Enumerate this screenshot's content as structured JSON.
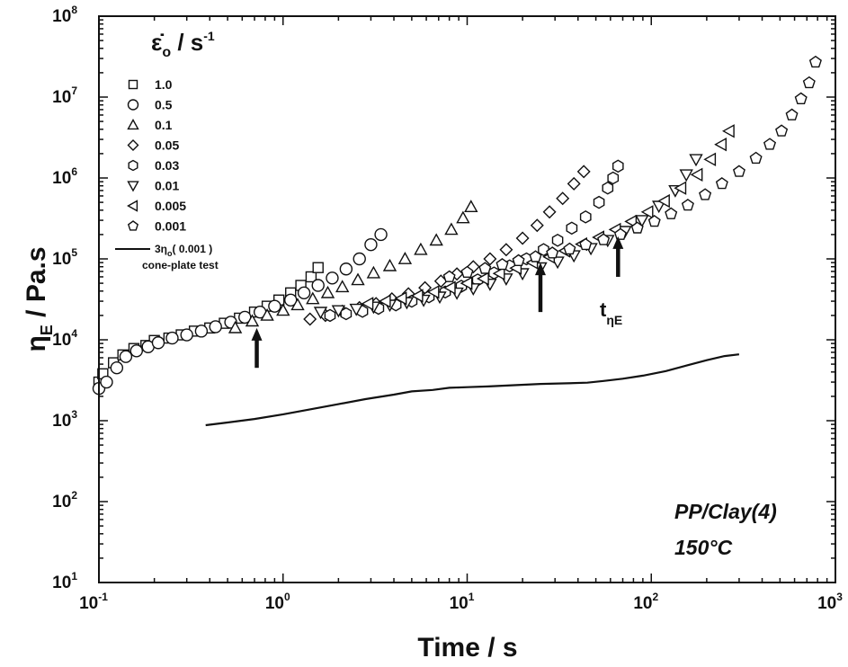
{
  "chart_data": {
    "type": "scatter",
    "x_scale": "log",
    "y_scale": "log",
    "xlim": [
      0.1,
      1000
    ],
    "ylim": [
      10,
      100000000
    ],
    "xlabel": "Time / s",
    "ylabel_main": "η",
    "ylabel_sub": "E",
    "ylabel_rest": " / Pa.s",
    "x_ticks": [
      {
        "base": "10",
        "exp": "-1",
        "value": 0.1
      },
      {
        "base": "10",
        "exp": "0",
        "value": 1
      },
      {
        "base": "10",
        "exp": "1",
        "value": 10
      },
      {
        "base": "10",
        "exp": "2",
        "value": 100
      },
      {
        "base": "10",
        "exp": "3",
        "value": 1000
      }
    ],
    "y_ticks": [
      {
        "base": "10",
        "exp": "1",
        "value": 10
      },
      {
        "base": "10",
        "exp": "2",
        "value": 100
      },
      {
        "base": "10",
        "exp": "3",
        "value": 1000
      },
      {
        "base": "10",
        "exp": "4",
        "value": 10000
      },
      {
        "base": "10",
        "exp": "5",
        "value": 100000
      },
      {
        "base": "10",
        "exp": "6",
        "value": 1000000
      },
      {
        "base": "10",
        "exp": "7",
        "value": 10000000
      },
      {
        "base": "10",
        "exp": "8",
        "value": 100000000
      }
    ],
    "legend_title": {
      "main": "ε̇",
      "sub": "o",
      "rest": " / s",
      "sup": "-1"
    },
    "legend_placement": "top-left",
    "series": [
      {
        "name": "1.0",
        "marker": "square",
        "points": [
          [
            0.1,
            3000
          ],
          [
            0.105,
            3800
          ],
          [
            0.12,
            5200
          ],
          [
            0.135,
            6500
          ],
          [
            0.155,
            7800
          ],
          [
            0.18,
            8500
          ],
          [
            0.2,
            9800
          ],
          [
            0.24,
            10500
          ],
          [
            0.28,
            11500
          ],
          [
            0.33,
            12800
          ],
          [
            0.4,
            14000
          ],
          [
            0.48,
            16000
          ],
          [
            0.58,
            18500
          ],
          [
            0.7,
            22000
          ],
          [
            0.82,
            26000
          ],
          [
            0.95,
            31000
          ],
          [
            1.1,
            38000
          ],
          [
            1.25,
            47000
          ],
          [
            1.42,
            60000
          ],
          [
            1.55,
            78000
          ]
        ]
      },
      {
        "name": "0.5",
        "marker": "circle",
        "points": [
          [
            0.1,
            2500
          ],
          [
            0.11,
            3000
          ],
          [
            0.125,
            4500
          ],
          [
            0.14,
            6200
          ],
          [
            0.16,
            7300
          ],
          [
            0.185,
            8200
          ],
          [
            0.21,
            9200
          ],
          [
            0.25,
            10500
          ],
          [
            0.3,
            11500
          ],
          [
            0.36,
            12800
          ],
          [
            0.43,
            14500
          ],
          [
            0.52,
            16500
          ],
          [
            0.62,
            19000
          ],
          [
            0.75,
            22000
          ],
          [
            0.9,
            26000
          ],
          [
            1.1,
            31000
          ],
          [
            1.3,
            38000
          ],
          [
            1.55,
            47000
          ],
          [
            1.85,
            58000
          ],
          [
            2.2,
            75000
          ],
          [
            2.6,
            100000
          ],
          [
            3.0,
            150000
          ],
          [
            3.4,
            200000
          ]
        ]
      },
      {
        "name": "0.1",
        "marker": "triangle-up",
        "points": [
          [
            0.55,
            14000
          ],
          [
            0.68,
            17000
          ],
          [
            0.82,
            20000
          ],
          [
            1.0,
            23000
          ],
          [
            1.2,
            27000
          ],
          [
            1.45,
            32000
          ],
          [
            1.75,
            38000
          ],
          [
            2.1,
            45000
          ],
          [
            2.55,
            55000
          ],
          [
            3.1,
            67000
          ],
          [
            3.8,
            82000
          ],
          [
            4.6,
            100000
          ],
          [
            5.6,
            130000
          ],
          [
            6.8,
            170000
          ],
          [
            8.2,
            230000
          ],
          [
            9.5,
            320000
          ],
          [
            10.5,
            440000
          ]
        ]
      },
      {
        "name": "0.05",
        "marker": "diamond",
        "points": [
          [
            1.4,
            18000
          ],
          [
            1.7,
            20000
          ],
          [
            2.1,
            22500
          ],
          [
            2.6,
            25000
          ],
          [
            3.2,
            28000
          ],
          [
            3.9,
            32000
          ],
          [
            4.8,
            37000
          ],
          [
            5.9,
            44000
          ],
          [
            7.2,
            53000
          ],
          [
            8.8,
            65000
          ],
          [
            10.8,
            80000
          ],
          [
            13.3,
            100000
          ],
          [
            16.3,
            130000
          ],
          [
            20,
            180000
          ],
          [
            24,
            260000
          ],
          [
            28,
            380000
          ],
          [
            33,
            560000
          ],
          [
            38,
            850000
          ],
          [
            43,
            1200000
          ]
        ]
      },
      {
        "name": "0.03",
        "marker": "hexagon",
        "points": [
          [
            1.8,
            20000
          ],
          [
            2.2,
            21000
          ],
          [
            2.7,
            22500
          ],
          [
            3.3,
            24500
          ],
          [
            4.1,
            27000
          ],
          [
            5.0,
            30000
          ],
          [
            6.2,
            34000
          ],
          [
            7.6,
            39000
          ],
          [
            9.3,
            46000
          ],
          [
            11.4,
            55000
          ],
          [
            14,
            67000
          ],
          [
            17,
            82000
          ],
          [
            21,
            100000
          ],
          [
            26,
            130000
          ],
          [
            31,
            170000
          ],
          [
            37,
            240000
          ],
          [
            44,
            330000
          ],
          [
            52,
            500000
          ],
          [
            58,
            750000
          ],
          [
            62,
            1000000
          ],
          [
            66,
            1400000
          ]
        ]
      },
      {
        "name": "0.01",
        "marker": "triangle-down",
        "points": [
          [
            1.6,
            22000
          ],
          [
            2.0,
            23000
          ],
          [
            2.5,
            24000
          ],
          [
            3.1,
            25500
          ],
          [
            3.8,
            27000
          ],
          [
            4.7,
            29000
          ],
          [
            5.8,
            31000
          ],
          [
            7.1,
            34000
          ],
          [
            8.8,
            38000
          ],
          [
            10.8,
            43000
          ],
          [
            13.3,
            49000
          ],
          [
            16.3,
            57000
          ],
          [
            20,
            66000
          ],
          [
            25,
            78000
          ],
          [
            31,
            92000
          ],
          [
            38,
            110000
          ],
          [
            47,
            135000
          ],
          [
            58,
            170000
          ],
          [
            72,
            220000
          ],
          [
            89,
            300000
          ],
          [
            110,
            450000
          ],
          [
            135,
            700000
          ],
          [
            155,
            1100000
          ],
          [
            175,
            1700000
          ]
        ]
      },
      {
        "name": "0.005",
        "marker": "triangle-left",
        "points": [
          [
            2.9,
            28000
          ],
          [
            3.6,
            30000
          ],
          [
            4.4,
            32500
          ],
          [
            5.4,
            35000
          ],
          [
            6.6,
            39000
          ],
          [
            8.1,
            44000
          ],
          [
            10,
            50000
          ],
          [
            12.3,
            57000
          ],
          [
            15,
            66000
          ],
          [
            18.5,
            77000
          ],
          [
            22.7,
            90000
          ],
          [
            28,
            106000
          ],
          [
            34,
            126000
          ],
          [
            42,
            152000
          ],
          [
            52,
            185000
          ],
          [
            64,
            230000
          ],
          [
            78,
            290000
          ],
          [
            96,
            380000
          ],
          [
            118,
            520000
          ],
          [
            145,
            750000
          ],
          [
            178,
            1100000
          ],
          [
            210,
            1700000
          ],
          [
            240,
            2600000
          ],
          [
            265,
            3800000
          ]
        ]
      },
      {
        "name": "0.001",
        "marker": "pentagon",
        "points": [
          [
            8,
            60000
          ],
          [
            10,
            68000
          ],
          [
            12.5,
            76000
          ],
          [
            15.5,
            85000
          ],
          [
            19,
            95000
          ],
          [
            23.5,
            106000
          ],
          [
            29,
            118000
          ],
          [
            36,
            132000
          ],
          [
            44,
            150000
          ],
          [
            55,
            172000
          ],
          [
            68,
            200000
          ],
          [
            84,
            240000
          ],
          [
            104,
            290000
          ],
          [
            128,
            360000
          ],
          [
            158,
            460000
          ],
          [
            196,
            620000
          ],
          [
            242,
            850000
          ],
          [
            300,
            1200000
          ],
          [
            370,
            1750000
          ],
          [
            440,
            2600000
          ],
          [
            510,
            3800000
          ],
          [
            580,
            6000000
          ],
          [
            650,
            9500000
          ],
          [
            720,
            15000000
          ],
          [
            780,
            27000000
          ]
        ]
      },
      {
        "name": "3η",
        "name_sub": "o",
        "name_rest": "( 0.001 )",
        "name_line2": "cone-plate test",
        "marker": "line",
        "points": [
          [
            0.38,
            880
          ],
          [
            0.5,
            950
          ],
          [
            0.7,
            1050
          ],
          [
            1.0,
            1200
          ],
          [
            1.4,
            1380
          ],
          [
            2.0,
            1600
          ],
          [
            2.8,
            1850
          ],
          [
            4.0,
            2100
          ],
          [
            5.0,
            2300
          ],
          [
            6.5,
            2400
          ],
          [
            8.0,
            2550
          ],
          [
            10,
            2600
          ],
          [
            13,
            2650
          ],
          [
            18,
            2750
          ],
          [
            25,
            2850
          ],
          [
            35,
            2900
          ],
          [
            45,
            2950
          ],
          [
            55,
            3100
          ],
          [
            70,
            3300
          ],
          [
            90,
            3600
          ],
          [
            120,
            4100
          ],
          [
            160,
            4900
          ],
          [
            200,
            5600
          ],
          [
            250,
            6300
          ],
          [
            300,
            6600
          ]
        ]
      }
    ],
    "arrows": [
      {
        "x": 0.72,
        "y_tip": 14000,
        "y_tail": 4500
      },
      {
        "x": 25,
        "y_tip": 90000,
        "y_tail": 22000
      },
      {
        "x": 66,
        "y_tip": 190000,
        "y_tail": 60000
      }
    ],
    "arrow_label": {
      "main": "t",
      "sub": "ηE"
    },
    "annotation_lines": [
      "PP/Clay(4)",
      "150°C"
    ]
  }
}
